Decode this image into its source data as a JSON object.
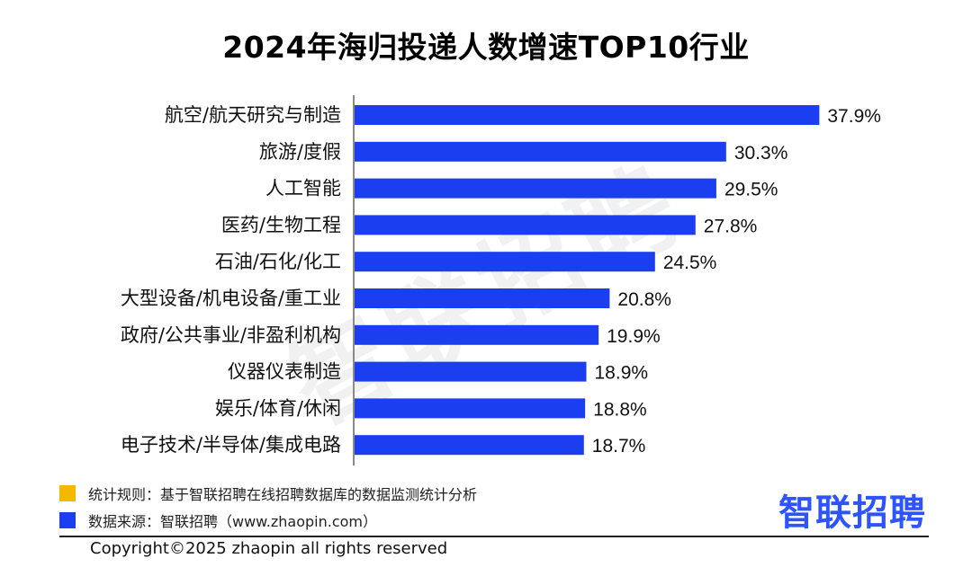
{
  "chart_data": {
    "type": "bar",
    "orientation": "horizontal",
    "title": "2024年海归投递人数增速TOP10行业",
    "categories": [
      "航空/航天研究与制造",
      "旅游/度假",
      "人工智能",
      "医药/生物工程",
      "石油/石化/化工",
      "大型设备/机电设备/重工业",
      "政府/公共事业/非盈利机构",
      "仪器仪表制造",
      "娱乐/体育/休闲",
      "电子技术/半导体/集成电路"
    ],
    "values": [
      37.9,
      30.3,
      29.5,
      27.8,
      24.5,
      20.8,
      19.9,
      18.9,
      18.8,
      18.7
    ],
    "value_labels": [
      "37.9%",
      "30.3%",
      "29.5%",
      "27.8%",
      "24.5%",
      "20.8%",
      "19.9%",
      "18.9%",
      "18.8%",
      "18.7%"
    ],
    "xlim": [
      0,
      40
    ],
    "bar_color": "#1b3ff0",
    "grid": false
  },
  "watermark": "智联招聘",
  "notes": [
    {
      "text": "统计规则：基于智联招聘在线招聘数据库的数据监测统计分析",
      "color": "#f5b800"
    },
    {
      "text": "数据来源：智联招聘（www.zhaopin.com）",
      "color": "#1b3ff0"
    }
  ],
  "logo": "智联招聘",
  "copyright": "Copyright©2025 zhaopin all rights reserved"
}
